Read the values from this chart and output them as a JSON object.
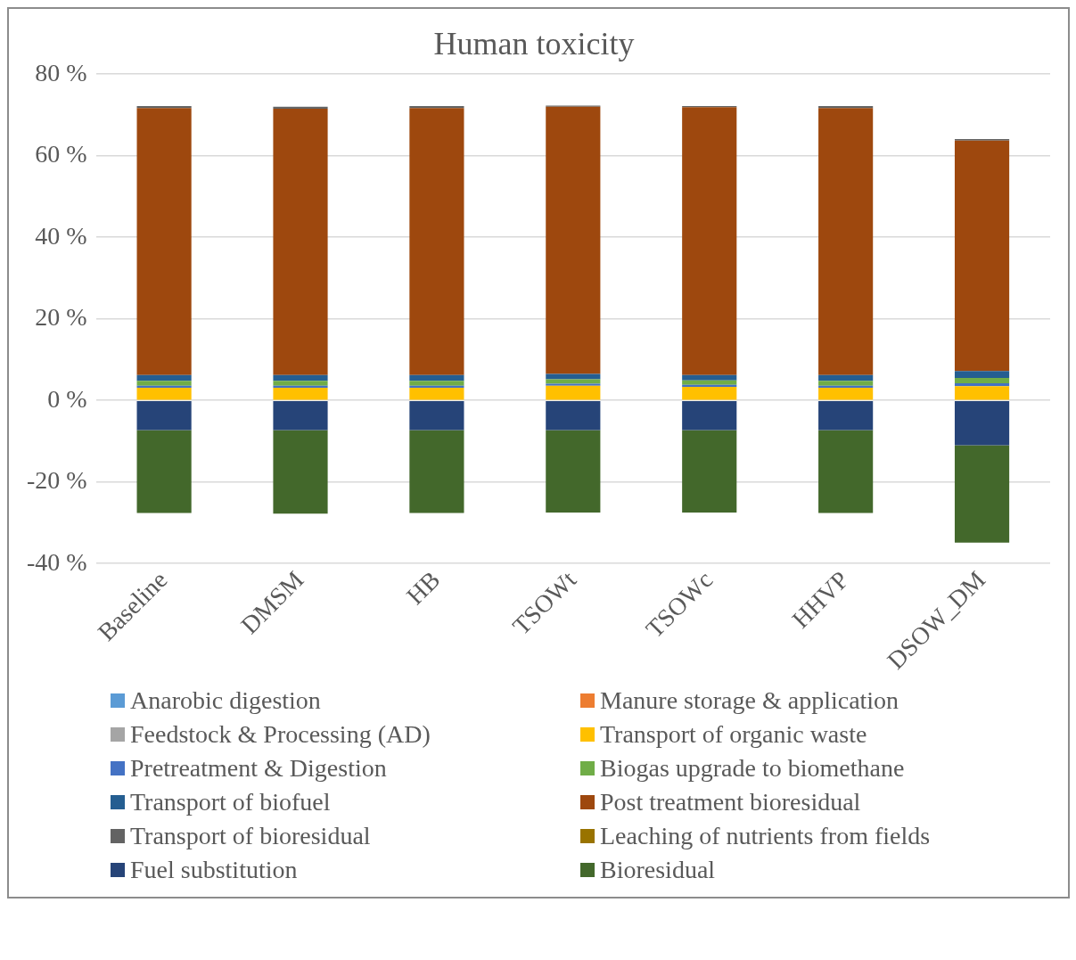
{
  "chart_data": {
    "type": "bar",
    "title": "Human toxicity",
    "stacked": true,
    "legend": "bottom",
    "grid": "y",
    "categories": [
      "Baseline",
      "DMSM",
      "HB",
      "TSOWt",
      "TSOWc",
      "HHVP",
      "DSOW_DM"
    ],
    "ylim": [
      -40,
      80
    ],
    "yticks": [
      {
        "value": -40,
        "label": "-40 %"
      },
      {
        "value": -20,
        "label": "-20 %"
      },
      {
        "value": 0,
        "label": "0 %"
      },
      {
        "value": 20,
        "label": "20 %"
      },
      {
        "value": 40,
        "label": "40 %"
      },
      {
        "value": 60,
        "label": "60 %"
      },
      {
        "value": 80,
        "label": "80 %"
      }
    ],
    "series": [
      {
        "name": "Anarobic digestion",
        "color": "#5b9bd5",
        "values": [
          0,
          0,
          0,
          0,
          0,
          0,
          0
        ]
      },
      {
        "name": "Manure storage & application",
        "color": "#ed7d31",
        "values": [
          0,
          0,
          0,
          0,
          0,
          0,
          0
        ]
      },
      {
        "name": "Feedstock & Processing (AD)",
        "color": "#a5a5a5",
        "values": [
          0,
          0,
          0,
          0,
          0,
          0,
          0
        ]
      },
      {
        "name": "Transport of organic waste",
        "color": "#ffc000",
        "values": [
          3.1,
          3.1,
          3.1,
          3.6,
          3.3,
          3.1,
          3.5
        ]
      },
      {
        "name": "Pretreatment & Digestion",
        "color": "#4472c4",
        "values": [
          0.5,
          0.5,
          0.5,
          0.5,
          0.5,
          0.5,
          0.7
        ]
      },
      {
        "name": "Biogas upgrade to biomethane",
        "color": "#70ad47",
        "values": [
          1.2,
          1.2,
          1.2,
          1.1,
          1.1,
          1.2,
          1.3
        ]
      },
      {
        "name": "Transport of biofuel",
        "color": "#255e91",
        "values": [
          1.4,
          1.4,
          1.4,
          1.3,
          1.3,
          1.4,
          1.7
        ]
      },
      {
        "name": "Post treatment bioresidual",
        "color": "#9e480e",
        "values": [
          65.5,
          65.3,
          65.5,
          65.5,
          65.7,
          65.5,
          56.5
        ]
      },
      {
        "name": "Transport of bioresidual",
        "color": "#636363",
        "values": [
          0.5,
          0.5,
          0.5,
          0.3,
          0.3,
          0.5,
          0.4
        ]
      },
      {
        "name": "Leaching of nutrients from fields",
        "color": "#997300",
        "values": [
          0,
          0,
          0,
          0,
          0,
          0,
          0
        ]
      },
      {
        "name": "Fuel substitution",
        "color": "#264478",
        "values": [
          -7.3,
          -7.3,
          -7.3,
          -7.3,
          -7.3,
          -7.3,
          -11
        ]
      },
      {
        "name": "Bioresidual",
        "color": "#43682b",
        "values": [
          -20.3,
          -20.5,
          -20.3,
          -20.2,
          -20.2,
          -20.3,
          -23.9
        ]
      }
    ]
  }
}
